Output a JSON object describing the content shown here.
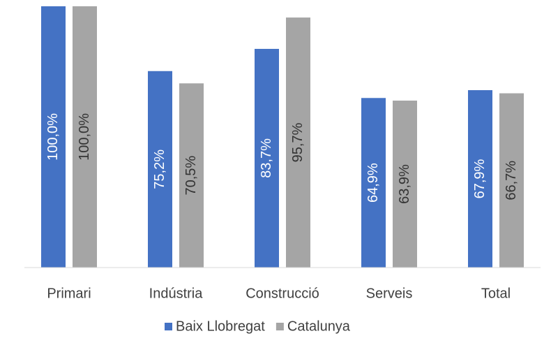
{
  "chart_data": {
    "type": "bar",
    "categories": [
      "Primari",
      "Indústria",
      "Construcció",
      "Serveis",
      "Total"
    ],
    "series": [
      {
        "name": "Baix Llobregat",
        "color": "#4472c4",
        "values": [
          100.0,
          75.2,
          83.7,
          64.9,
          67.9
        ],
        "value_labels": [
          "100,0%",
          "75,2%",
          "83,7%",
          "64,9%",
          "67,9%"
        ]
      },
      {
        "name": "Catalunya",
        "color": "#a5a5a5",
        "values": [
          100.0,
          70.5,
          95.7,
          63.9,
          66.7
        ],
        "value_labels": [
          "100,0%",
          "70,5%",
          "95,7%",
          "63,9%",
          "66,7%"
        ]
      }
    ],
    "ylim": [
      0,
      100
    ],
    "legend": "bottom"
  }
}
